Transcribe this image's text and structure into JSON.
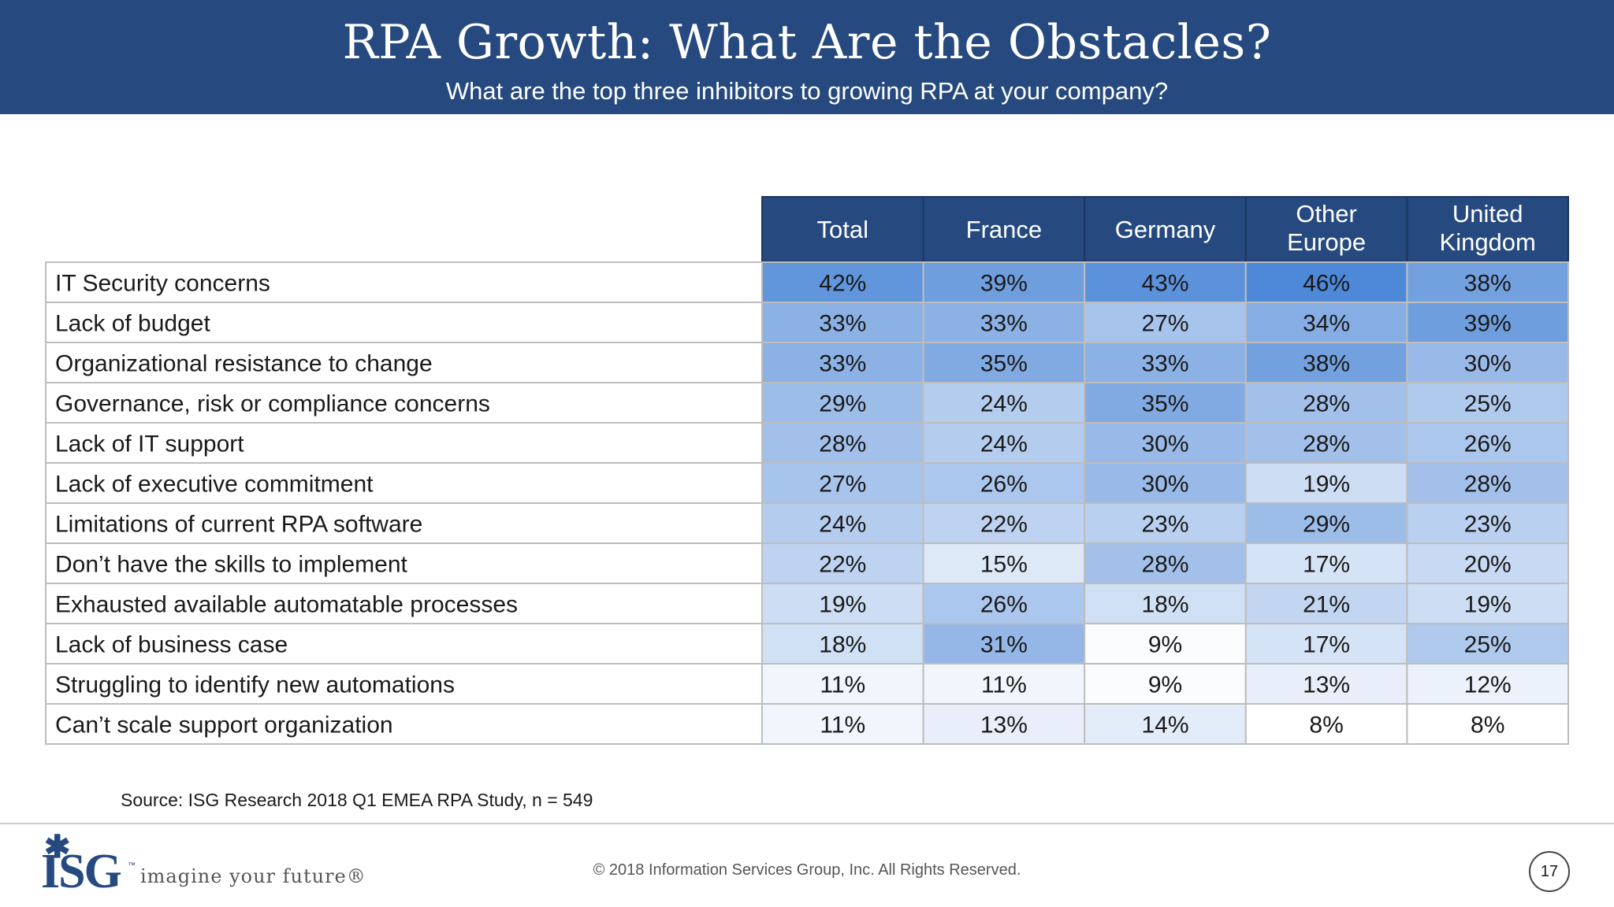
{
  "header": {
    "title": "RPA Growth: What Are the Obstacles?",
    "subtitle": "What are the top three inhibitors to growing RPA at your company?"
  },
  "colors": {
    "header_bg": "#264a7f",
    "column_header_bg": "#264a7f",
    "heat_low": "#ffffff",
    "heat_high": "#4e88d8"
  },
  "chart_data": {
    "type": "heatmap",
    "columns": [
      "Total",
      "France",
      "Germany",
      "Other Europe",
      "United Kingdom"
    ],
    "rows": [
      "IT Security concerns",
      "Lack of budget",
      "Organizational resistance to change",
      "Governance, risk or compliance concerns",
      "Lack of IT support",
      "Lack of executive commitment",
      "Limitations of current RPA software",
      "Don’t have the skills to implement",
      "Exhausted available automatable processes",
      "Lack of business case",
      "Struggling to identify new automations",
      "Can’t scale support organization"
    ],
    "values": [
      [
        42,
        39,
        43,
        46,
        38
      ],
      [
        33,
        33,
        27,
        34,
        39
      ],
      [
        33,
        35,
        33,
        38,
        30
      ],
      [
        29,
        24,
        35,
        28,
        25
      ],
      [
        28,
        24,
        30,
        28,
        26
      ],
      [
        27,
        26,
        30,
        19,
        28
      ],
      [
        24,
        22,
        23,
        29,
        23
      ],
      [
        22,
        15,
        28,
        17,
        20
      ],
      [
        19,
        26,
        18,
        21,
        19
      ],
      [
        18,
        31,
        9,
        17,
        25
      ],
      [
        11,
        11,
        9,
        13,
        12
      ],
      [
        11,
        13,
        14,
        8,
        8
      ]
    ],
    "unit": "%",
    "color_scale": "white-to-blue, darker = higher percentage"
  },
  "source": "Source: ISG Research 2018 Q1 EMEA RPA Study, n = 549",
  "footer": {
    "logo_text": "ISG",
    "tagline": "imagine your future®",
    "copyright": "© 2018 Information Services Group, Inc.  All Rights Reserved.",
    "page_number": "17"
  }
}
